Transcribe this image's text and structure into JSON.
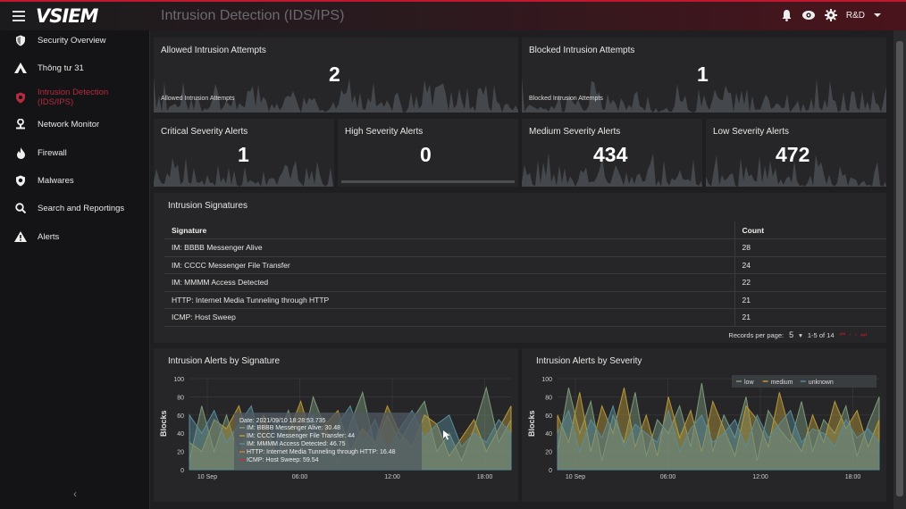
{
  "app": {
    "logo": "VSIEM",
    "page_title": "Intrusion Detection (IDS/IPS)",
    "user": "R&D"
  },
  "colors": {
    "accent": "#c01830",
    "panel": "#262628",
    "spark": "#4a4f52",
    "low": "#7d9a7a",
    "medium": "#b89a3a",
    "unknown": "#5a8c9a"
  },
  "sidebar": {
    "items": [
      {
        "label": "Security Overview",
        "icon": "shield-icon"
      },
      {
        "label": "Thông tư 31",
        "icon": "triangle-icon"
      },
      {
        "label": "Intrusion Detection (IDS/IPS)",
        "icon": "shield-alert-icon",
        "active": true
      },
      {
        "label": "Network Monitor",
        "icon": "network-person-icon"
      },
      {
        "label": "Firewall",
        "icon": "fire-icon"
      },
      {
        "label": "Malwares",
        "icon": "virus-shield-icon"
      },
      {
        "label": "Search and Reportings",
        "icon": "search-icon"
      },
      {
        "label": "Alerts",
        "icon": "warning-icon"
      }
    ],
    "collapse": "‹"
  },
  "kpis": {
    "allowed": {
      "title": "Allowed Intrusion Attempts",
      "value": "2",
      "caption": "Allowed Intrusion Attempts"
    },
    "blocked": {
      "title": "Blocked Intrusion Attempts",
      "value": "1",
      "caption": "Blocked Intrusion Attempts"
    },
    "critical": {
      "title": "Critical Severity Alerts",
      "value": "1"
    },
    "high": {
      "title": "High Severity Alerts",
      "value": "0"
    },
    "medium": {
      "title": "Medium Severity Alerts",
      "value": "434"
    },
    "low": {
      "title": "Low Severity Alerts",
      "value": "472"
    }
  },
  "signatures": {
    "title": "Intrusion Signatures",
    "headers": [
      "Signature",
      "Count"
    ],
    "rows": [
      [
        "IM: BBBB Messenger Alive",
        "28"
      ],
      [
        "IM: CCCC Messenger File Transfer",
        "24"
      ],
      [
        "IM: MMMM Access Detected",
        "22"
      ],
      [
        "HTTP: Internet Media Tunneling through HTTP",
        "21"
      ],
      [
        "ICMP: Host Sweep",
        "21"
      ]
    ],
    "pager": {
      "label": "Records per page:",
      "per_page": "5",
      "range": "1-5 of 14"
    }
  },
  "chart_data": [
    {
      "type": "area",
      "title": "Intrusion Alerts by Signature",
      "ylabel": "Blocks",
      "ylim": [
        0,
        100
      ],
      "yticks": [
        "0",
        "20",
        "40",
        "60",
        "80",
        "100"
      ],
      "xticks": [
        "10 Sep",
        "06:00",
        "12:00",
        "18:00"
      ],
      "series": [
        {
          "name": "IM: BBBB Messenger Alive",
          "values": [
            10,
            70,
            20,
            60,
            15,
            55,
            35,
            30,
            65,
            20,
            80,
            45,
            10,
            50,
            85,
            25,
            60,
            30,
            55,
            75,
            20,
            40,
            10,
            45,
            90,
            30,
            55
          ]
        },
        {
          "name": "IM: CCCC Messenger File Transfer",
          "values": [
            30,
            20,
            55,
            45,
            70,
            25,
            60,
            15,
            40,
            75,
            30,
            50,
            65,
            20,
            45,
            30,
            70,
            40,
            25,
            60,
            50,
            15,
            35,
            55,
            20,
            45,
            70
          ]
        },
        {
          "name": "IM: MMMM Access Detected",
          "values": [
            60,
            40,
            65,
            30,
            50,
            70,
            20,
            55,
            35,
            45,
            60,
            25,
            50,
            70,
            30,
            55,
            20,
            45,
            65,
            35,
            50,
            60,
            25,
            40,
            30,
            55,
            40
          ]
        }
      ],
      "tooltip": {
        "date": "Date: 2021/09/10 18:28:53.735",
        "lines": [
          "IM: BBBB Messenger Alive: 30.48",
          "IM: CCCC Messenger File Transfer: 44",
          "IM: MMMM Access Detected: 46.75",
          "HTTP: Internet Media Tunneling through HTTP: 16.48",
          "ICMP: Host Sweep: 59.54"
        ],
        "colors": [
          "#7d9a7a",
          "#b89a3a",
          "#5a8c9a",
          "#c0843a",
          "#c03040"
        ]
      }
    },
    {
      "type": "area",
      "title": "Intrusion Alerts by Severity",
      "ylabel": "Blocks",
      "ylim": [
        0,
        100
      ],
      "yticks": [
        "0",
        "20",
        "40",
        "60",
        "80",
        "100"
      ],
      "xticks": [
        "10 Sep",
        "06:00",
        "12:00",
        "18:00"
      ],
      "legend": "top-right",
      "series": [
        {
          "name": "low",
          "values": [
            20,
            90,
            40,
            75,
            10,
            60,
            30,
            85,
            15,
            55,
            40,
            70,
            25,
            95,
            20,
            60,
            35,
            80,
            10,
            65,
            45,
            30,
            75,
            20,
            55,
            40,
            70,
            15,
            50,
            80
          ]
        },
        {
          "name": "medium",
          "values": [
            60,
            30,
            85,
            20,
            70,
            40,
            90,
            25,
            60,
            15,
            80,
            35,
            65,
            20,
            75,
            45,
            15,
            70,
            55,
            25,
            85,
            40,
            20,
            60,
            30,
            75,
            45,
            65,
            25,
            55
          ]
        },
        {
          "name": "unknown",
          "values": [
            40,
            65,
            20,
            55,
            35,
            70,
            25,
            50,
            40,
            30,
            65,
            20,
            45,
            60,
            30,
            40,
            55,
            25,
            60,
            35,
            50,
            65,
            30,
            45,
            40,
            25,
            55,
            35,
            45,
            30
          ]
        }
      ]
    }
  ]
}
